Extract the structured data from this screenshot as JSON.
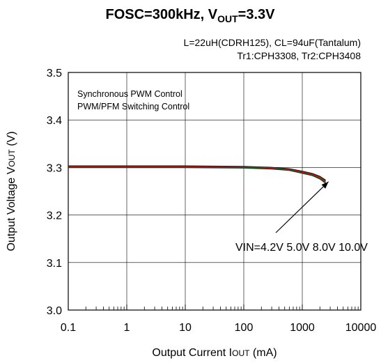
{
  "chart_data": {
    "type": "line",
    "title": "FOSC=300kHz, V",
    "title_subscript": "OUT",
    "title_suffix": "=3.3V",
    "subtitle_lines": [
      "L=22uH(CDRH125), CL=94uF(Tantalum)",
      "Tr1:CPH3308, Tr2:CPH3408"
    ],
    "annotations": [
      "Synchronous PWM  Control",
      "PWM/PFM Switching Control"
    ],
    "series_label": "VIN=4.2V 5.0V 8.0V 10.0V",
    "xlabel": "Output Current  I",
    "xlabel_subscript": "OUT",
    "xlabel_suffix": " (mA)",
    "ylabel": "Output Voltage  V",
    "ylabel_subscript": "OUT",
    "ylabel_suffix": " (V)",
    "x_scale": "log",
    "xlim": [
      0.1,
      10000
    ],
    "ylim": [
      3.0,
      3.5
    ],
    "x_tick_labels": [
      "0.1",
      "1",
      "10",
      "100",
      "1000",
      "10000"
    ],
    "y_tick_labels": [
      "3.0",
      "3.1",
      "3.2",
      "3.3",
      "3.4",
      "3.5"
    ],
    "grid": true,
    "series": [
      {
        "color": "#000000",
        "x": [
          0.1,
          1,
          10,
          100,
          300,
          600,
          1000,
          1500,
          2000,
          2500
        ],
        "y": [
          3.303,
          3.303,
          3.303,
          3.302,
          3.3,
          3.297,
          3.292,
          3.287,
          3.281,
          3.273
        ]
      },
      {
        "color": "#cc0000",
        "x": [
          0.1,
          1,
          10,
          100,
          300,
          600,
          1000,
          1500,
          2000,
          2500
        ],
        "y": [
          3.302,
          3.302,
          3.302,
          3.301,
          3.299,
          3.296,
          3.291,
          3.286,
          3.28,
          3.271
        ]
      },
      {
        "color": "#1a7a1a",
        "x": [
          0.1,
          1,
          10,
          100,
          300,
          600,
          1000,
          1500,
          2000,
          2500
        ],
        "y": [
          3.301,
          3.301,
          3.301,
          3.3,
          3.298,
          3.295,
          3.289,
          3.284,
          3.278,
          3.269
        ]
      },
      {
        "color": "#333333",
        "x": [
          0.1,
          1,
          10,
          100,
          300,
          600,
          1000,
          1500,
          2000,
          2500
        ],
        "y": [
          3.3,
          3.3,
          3.3,
          3.299,
          3.297,
          3.294,
          3.288,
          3.283,
          3.276,
          3.267
        ]
      }
    ],
    "arrow_target": {
      "x": 2800,
      "y": 3.27
    }
  }
}
